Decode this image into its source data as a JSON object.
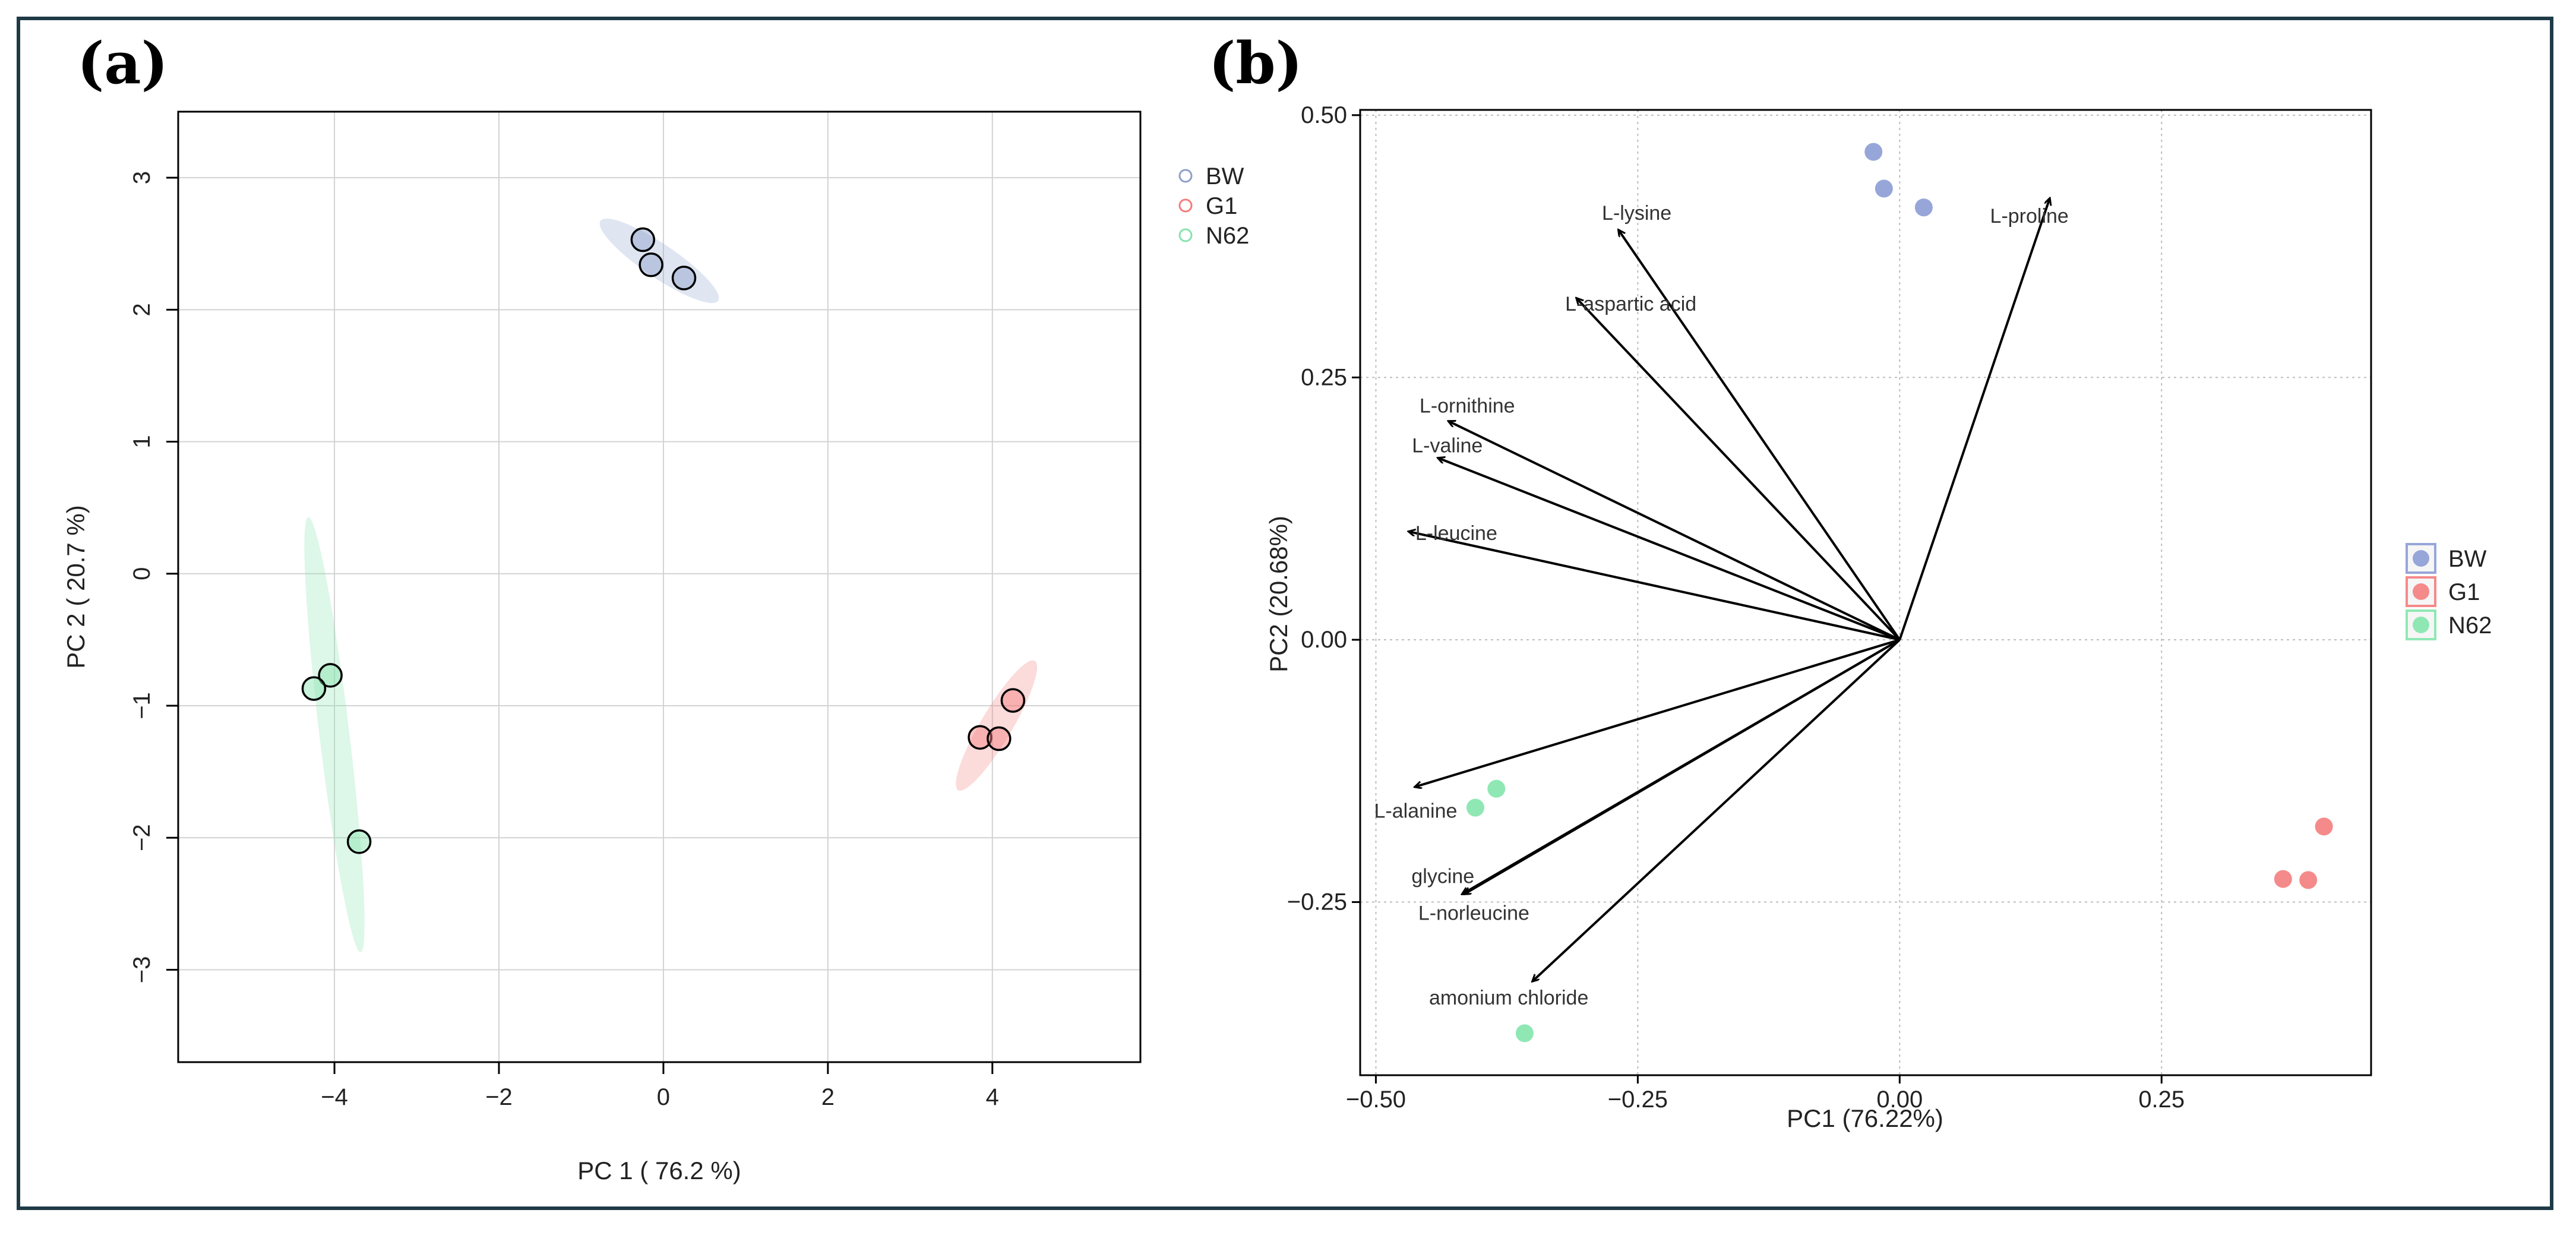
{
  "panel_labels": [
    "(a)",
    "(b)"
  ],
  "colors": {
    "BW": "#8da0cb",
    "G1": "#f47c7c",
    "N62": "#86e3ac",
    "BW_fill_b": "#97a6d9",
    "G1_fill_b": "#f58a8a",
    "N62_fill_b": "#8fe8b4"
  },
  "chart_data": [
    {
      "type": "scatter",
      "title": "(a)",
      "xlabel": "PC 1 ( 76.2 %)",
      "ylabel": "PC 2 ( 20.7 %)",
      "xlim": [
        -5.9,
        5.8
      ],
      "ylim": [
        -3.7,
        3.5
      ],
      "xticks": [
        -4,
        -2,
        0,
        2,
        4
      ],
      "xtick_labels": [
        "−4",
        "−2",
        "0",
        "2",
        "4"
      ],
      "yticks": [
        -3,
        -2,
        -1,
        0,
        1,
        2,
        3
      ],
      "ytick_labels": [
        "−3",
        "−2",
        "−1",
        "0",
        "1",
        "2",
        "3"
      ],
      "grid": true,
      "legend": {
        "position": "top-right outside",
        "entries": [
          "BW",
          "G1",
          "N62"
        ]
      },
      "series": [
        {
          "name": "BW",
          "x": [
            -0.25,
            -0.15,
            0.25
          ],
          "y": [
            2.53,
            2.34,
            2.24
          ],
          "ellipse": {
            "cx": -0.05,
            "cy": 2.37,
            "rx": 0.78,
            "ry": 0.14,
            "angle_deg": -22
          }
        },
        {
          "name": "G1",
          "x": [
            4.25,
            3.85,
            4.08
          ],
          "y": [
            -0.96,
            -1.24,
            -1.25
          ],
          "ellipse": {
            "cx": 4.05,
            "cy": -1.15,
            "rx": 0.68,
            "ry": 0.16,
            "angle_deg": 45
          }
        },
        {
          "name": "N62",
          "x": [
            -4.05,
            -4.25,
            -3.7
          ],
          "y": [
            -0.77,
            -0.87,
            -2.03
          ],
          "ellipse": {
            "cx": -4.0,
            "cy": -1.22,
            "rx": 1.68,
            "ry": 0.18,
            "angle_deg": -79
          }
        }
      ]
    },
    {
      "type": "scatter",
      "title": "(b)",
      "subtype": "biplot",
      "xlabel": "PC1 (76.22%)",
      "ylabel": "PC2 (20.68%)",
      "xlim": [
        -0.515,
        0.45
      ],
      "ylim": [
        -0.415,
        0.505
      ],
      "xticks": [
        -0.5,
        -0.25,
        0,
        0.25
      ],
      "xtick_labels": [
        "−0.50",
        "−0.25",
        "0.00",
        "0.25"
      ],
      "yticks": [
        -0.25,
        0,
        0.25,
        0.5
      ],
      "ytick_labels": [
        "−0.25",
        "0.00",
        "0.25",
        "0.50"
      ],
      "grid": true,
      "legend": {
        "position": "right outside",
        "entries": [
          "BW",
          "G1",
          "N62"
        ]
      },
      "series": [
        {
          "name": "BW",
          "x": [
            -0.025,
            -0.015,
            0.023
          ],
          "y": [
            0.465,
            0.43,
            0.412
          ]
        },
        {
          "name": "G1",
          "x": [
            0.405,
            0.366,
            0.39
          ],
          "y": [
            -0.178,
            -0.228,
            -0.229
          ]
        },
        {
          "name": "N62",
          "x": [
            -0.385,
            -0.405,
            -0.358
          ],
          "y": [
            -0.142,
            -0.16,
            -0.375
          ]
        }
      ],
      "vectors": [
        {
          "name": "L-lysine",
          "x": -0.268,
          "y": 0.39
        },
        {
          "name": "L-aspartic acid",
          "x": -0.308,
          "y": 0.325
        },
        {
          "name": "L-proline",
          "x": 0.143,
          "y": 0.42
        },
        {
          "name": "L-ornithine",
          "x": -0.43,
          "y": 0.208
        },
        {
          "name": "L-valine",
          "x": -0.44,
          "y": 0.173
        },
        {
          "name": "L-leucine",
          "x": -0.468,
          "y": 0.103
        },
        {
          "name": "L-alanine",
          "x": -0.462,
          "y": -0.14
        },
        {
          "name": "glycine",
          "x": -0.415,
          "y": -0.242
        },
        {
          "name": "L-norleucine",
          "x": -0.417,
          "y": -0.242
        },
        {
          "name": "amonium chloride",
          "x": -0.35,
          "y": -0.325
        }
      ]
    }
  ]
}
